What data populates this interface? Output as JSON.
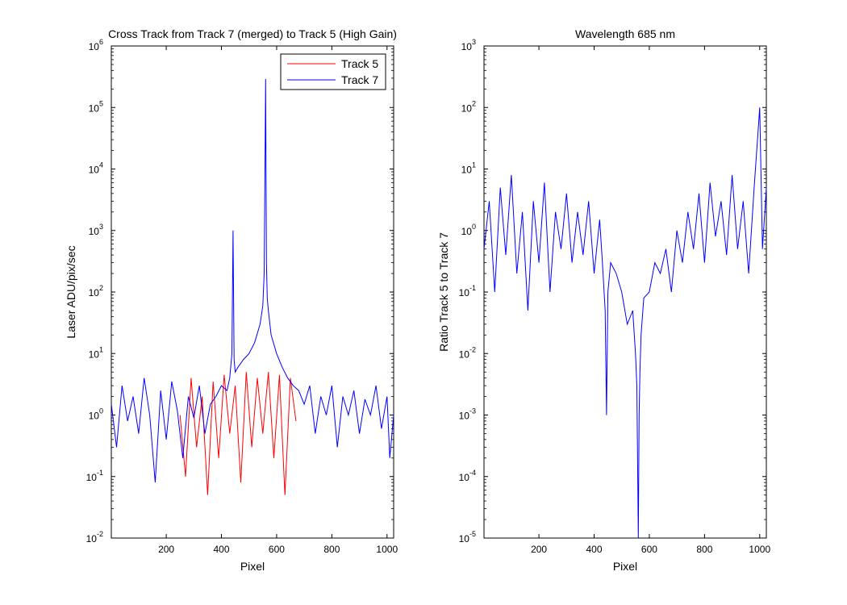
{
  "chart_data": [
    {
      "type": "line",
      "title": "Cross Track from Track 7 (merged) to Track 5 (High Gain)",
      "xlabel": "Pixel",
      "ylabel": "Laser ADU/pix/sec",
      "xlim": [
        1,
        1024
      ],
      "ylim": [
        0.01,
        1000000
      ],
      "yscale": "log",
      "grid": false,
      "legend_position": "top-right",
      "x_ticks": [
        200,
        400,
        600,
        800,
        1000
      ],
      "x_tick_labels": [
        "200",
        "400",
        "600",
        "800",
        "1000"
      ],
      "y_ticks": [
        0.01,
        0.1,
        1,
        10,
        100,
        1000,
        10000,
        100000,
        1000000
      ],
      "y_tick_labels": [
        {
          "base": "10",
          "exp": "-2"
        },
        {
          "base": "10",
          "exp": "-1"
        },
        {
          "base": "10",
          "exp": "0"
        },
        {
          "base": "10",
          "exp": "1"
        },
        {
          "base": "10",
          "exp": "2"
        },
        {
          "base": "10",
          "exp": "3"
        },
        {
          "base": "10",
          "exp": "4"
        },
        {
          "base": "10",
          "exp": "5"
        },
        {
          "base": "10",
          "exp": "6"
        }
      ],
      "series": [
        {
          "name": "Track 5",
          "color": "#ff0000",
          "x": [
            250,
            270,
            290,
            310,
            330,
            350,
            370,
            390,
            410,
            430,
            450,
            470,
            490,
            510,
            530,
            550,
            570,
            590,
            610,
            630,
            650,
            670
          ],
          "y": [
            1.0,
            0.1,
            4.0,
            0.3,
            2.0,
            0.05,
            3.5,
            0.2,
            4.5,
            0.5,
            3.0,
            0.08,
            5.0,
            0.3,
            4.0,
            0.5,
            5.0,
            0.2,
            4.5,
            0.05,
            4.0,
            0.8
          ]
        },
        {
          "name": "Track 7",
          "color": "#0000ff",
          "x": [
            1,
            20,
            40,
            60,
            80,
            100,
            120,
            140,
            160,
            180,
            200,
            220,
            240,
            260,
            280,
            300,
            320,
            340,
            360,
            380,
            400,
            420,
            430,
            438,
            442,
            446,
            450,
            460,
            480,
            500,
            520,
            540,
            550,
            555,
            560,
            563,
            566,
            570,
            580,
            600,
            620,
            640,
            660,
            680,
            700,
            720,
            740,
            760,
            780,
            800,
            820,
            840,
            860,
            880,
            900,
            920,
            940,
            960,
            980,
            1000,
            1010,
            1024
          ],
          "y": [
            1.5,
            0.3,
            3.0,
            0.8,
            2.0,
            0.5,
            4.0,
            1.0,
            0.08,
            2.5,
            0.4,
            3.5,
            1.2,
            0.2,
            2.0,
            0.9,
            3.0,
            0.5,
            1.5,
            2.0,
            3.0,
            2.5,
            4.0,
            10.0,
            1000.0,
            8.0,
            5.0,
            6.0,
            8.0,
            10.0,
            15.0,
            30.0,
            60.0,
            200.0,
            290000.0,
            300.0,
            80.0,
            50.0,
            20.0,
            10.0,
            6.0,
            4.0,
            3.0,
            2.5,
            1.5,
            3.0,
            0.5,
            2.0,
            1.0,
            3.0,
            0.3,
            2.0,
            1.0,
            2.5,
            0.5,
            1.8,
            1.0,
            3.0,
            0.6,
            2.0,
            0.2,
            1.0
          ]
        }
      ]
    },
    {
      "type": "line",
      "title": "Wavelength 685 nm",
      "xlabel": "Pixel",
      "ylabel": "Ratio Track 5 to Track 7",
      "xlim": [
        1,
        1024
      ],
      "ylim": [
        1e-05,
        1000
      ],
      "yscale": "log",
      "grid": false,
      "x_ticks": [
        200,
        400,
        600,
        800,
        1000
      ],
      "x_tick_labels": [
        "200",
        "400",
        "600",
        "800",
        "1000"
      ],
      "y_ticks": [
        1e-05,
        0.0001,
        0.001,
        0.01,
        0.1,
        1,
        10,
        100,
        1000
      ],
      "y_tick_labels": [
        {
          "base": "10",
          "exp": "-5"
        },
        {
          "base": "10",
          "exp": "-4"
        },
        {
          "base": "10",
          "exp": "-3"
        },
        {
          "base": "10",
          "exp": "-2"
        },
        {
          "base": "10",
          "exp": "-1"
        },
        {
          "base": "10",
          "exp": "0"
        },
        {
          "base": "10",
          "exp": "1"
        },
        {
          "base": "10",
          "exp": "2"
        },
        {
          "base": "10",
          "exp": "3"
        }
      ],
      "series": [
        {
          "name": "",
          "color": "#0000ff",
          "x": [
            1,
            20,
            40,
            60,
            80,
            100,
            120,
            140,
            160,
            180,
            200,
            220,
            240,
            260,
            280,
            300,
            320,
            340,
            360,
            380,
            400,
            420,
            430,
            440,
            445,
            450,
            460,
            480,
            500,
            520,
            540,
            550,
            555,
            560,
            563,
            566,
            570,
            580,
            600,
            620,
            640,
            660,
            680,
            700,
            720,
            740,
            760,
            780,
            800,
            820,
            840,
            860,
            880,
            900,
            920,
            940,
            960,
            980,
            1000,
            1010,
            1024
          ],
          "y": [
            0.5,
            3.0,
            0.1,
            5.0,
            0.4,
            8.0,
            0.2,
            2.0,
            0.05,
            3.0,
            0.3,
            6.0,
            0.1,
            2.0,
            0.5,
            4.0,
            0.3,
            2.0,
            0.4,
            3.0,
            0.2,
            1.5,
            0.3,
            0.05,
            0.001,
            0.1,
            0.3,
            0.2,
            0.1,
            0.03,
            0.05,
            0.01,
            0.003,
            1e-05,
            0.001,
            0.005,
            0.02,
            0.08,
            0.1,
            0.3,
            0.2,
            0.5,
            0.1,
            1.0,
            0.3,
            2.0,
            0.5,
            4.0,
            0.3,
            6.0,
            0.8,
            3.0,
            0.4,
            8.0,
            0.5,
            3.0,
            0.2,
            5.0,
            100.0,
            0.5,
            5.0
          ]
        }
      ]
    }
  ]
}
